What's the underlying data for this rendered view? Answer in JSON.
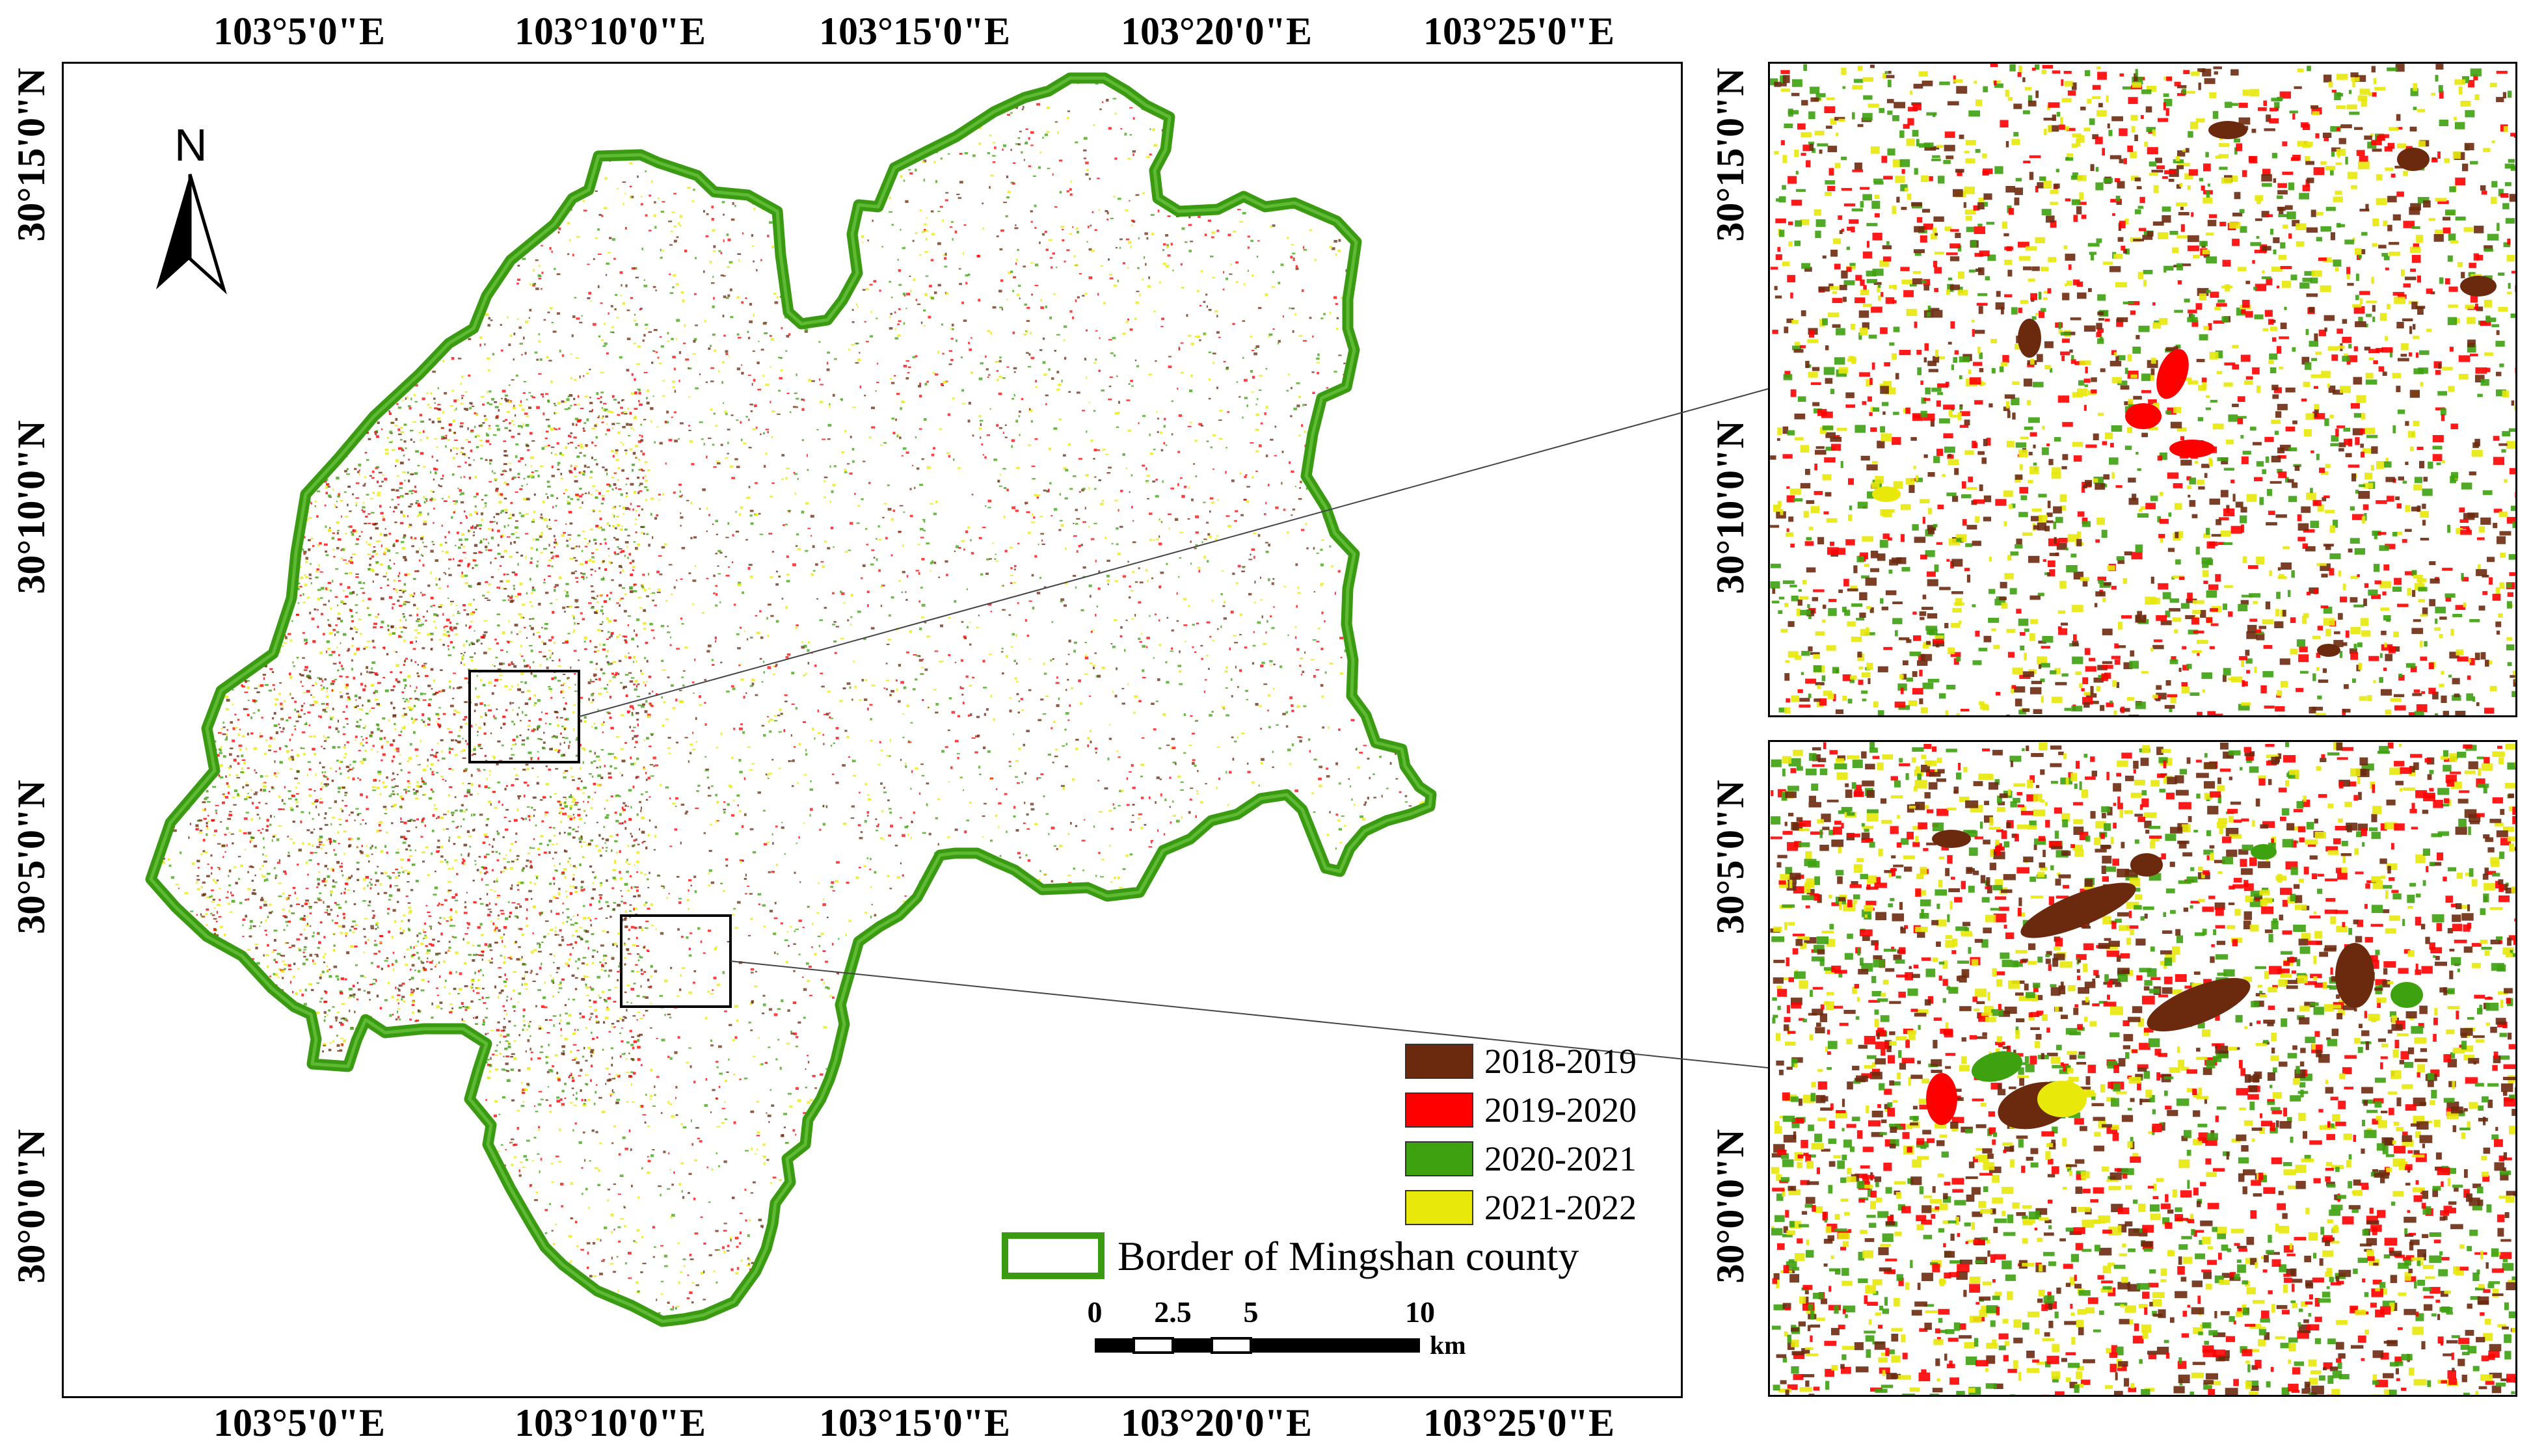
{
  "main_map": {
    "lon_labels": [
      "103°5'0\"E",
      "103°10'0\"E",
      "103°15'0\"E",
      "103°20'0\"E",
      "103°25'0\"E"
    ],
    "lat_labels": [
      "30°15'0\"N",
      "30°10'0\"N",
      "30°5'0\"N",
      "30°0'0\"N"
    ],
    "north_arrow_label": "N"
  },
  "inset_maps": {
    "lat_labels": [
      "30°15'0\"N",
      "30°10'0\"N",
      "30°5'0\"N",
      "30°0'0\"N"
    ]
  },
  "legend": {
    "items": [
      {
        "label": "2018-2019",
        "color": "#6b2a0e"
      },
      {
        "label": "2019-2020",
        "color": "#ff0000"
      },
      {
        "label": "2020-2021",
        "color": "#3ea10f"
      },
      {
        "label": "2021-2022",
        "color": "#e8e80a"
      }
    ],
    "border_label": "Border of Mingshan county",
    "border_color": "#3a9a12"
  },
  "scale_bar": {
    "ticks": [
      "0",
      "2.5",
      "5",
      "10"
    ],
    "unit": "km"
  }
}
